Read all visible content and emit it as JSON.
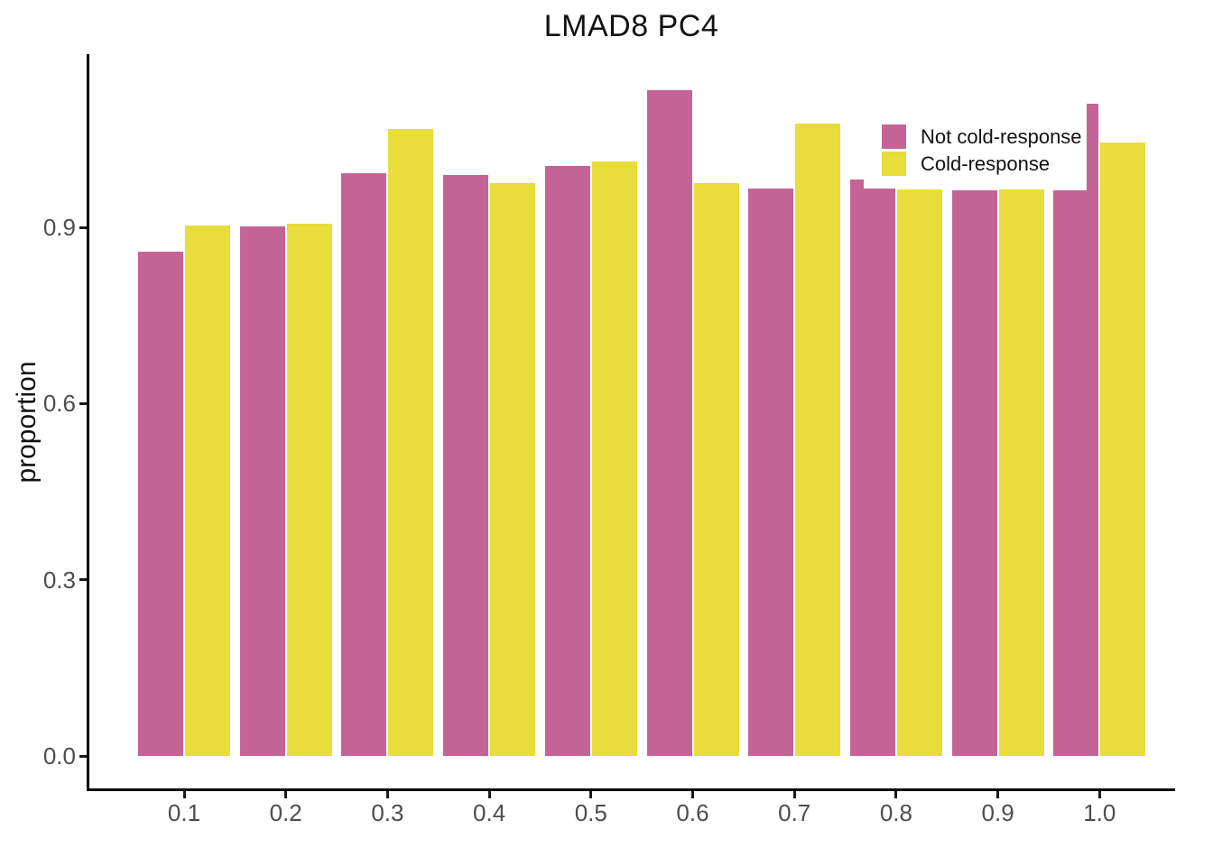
{
  "chart_data": {
    "type": "bar",
    "title": "LMAD8 PC4",
    "xlabel": "",
    "ylabel": "proportion",
    "categories": [
      "0.1",
      "0.2",
      "0.3",
      "0.4",
      "0.5",
      "0.6",
      "0.7",
      "0.8",
      "0.9",
      "1.0"
    ],
    "series": [
      {
        "name": "Not cold-response",
        "color": "#C46496",
        "values": [
          0.858,
          0.901,
          0.992,
          0.99,
          1.004,
          1.133,
          0.966,
          0.966,
          0.963,
          0.963
        ]
      },
      {
        "name": "Cold-response",
        "color": "#E8DD3A",
        "values": [
          0.903,
          0.907,
          1.068,
          0.975,
          1.012,
          0.975,
          1.077,
          0.964,
          0.965,
          1.044
        ]
      }
    ],
    "partial_bar_overlays": [
      {
        "category": "0.8",
        "series_index": 0,
        "value": 0.981,
        "side": "left",
        "width_fraction": 0.3
      },
      {
        "category": "1.0",
        "series_index": 0,
        "value": 1.111,
        "side": "right",
        "width_fraction": 0.26
      }
    ],
    "y_ticks": [
      "0.0",
      "0.3",
      "0.6",
      "0.9"
    ],
    "y_tick_values": [
      0.0,
      0.3,
      0.6,
      0.9
    ],
    "ylim": [
      0,
      1.19
    ],
    "grid": "off",
    "legend_position": "inside-top-right",
    "axis_color": "#000000",
    "tick_label_color": "#4d4d4d"
  }
}
